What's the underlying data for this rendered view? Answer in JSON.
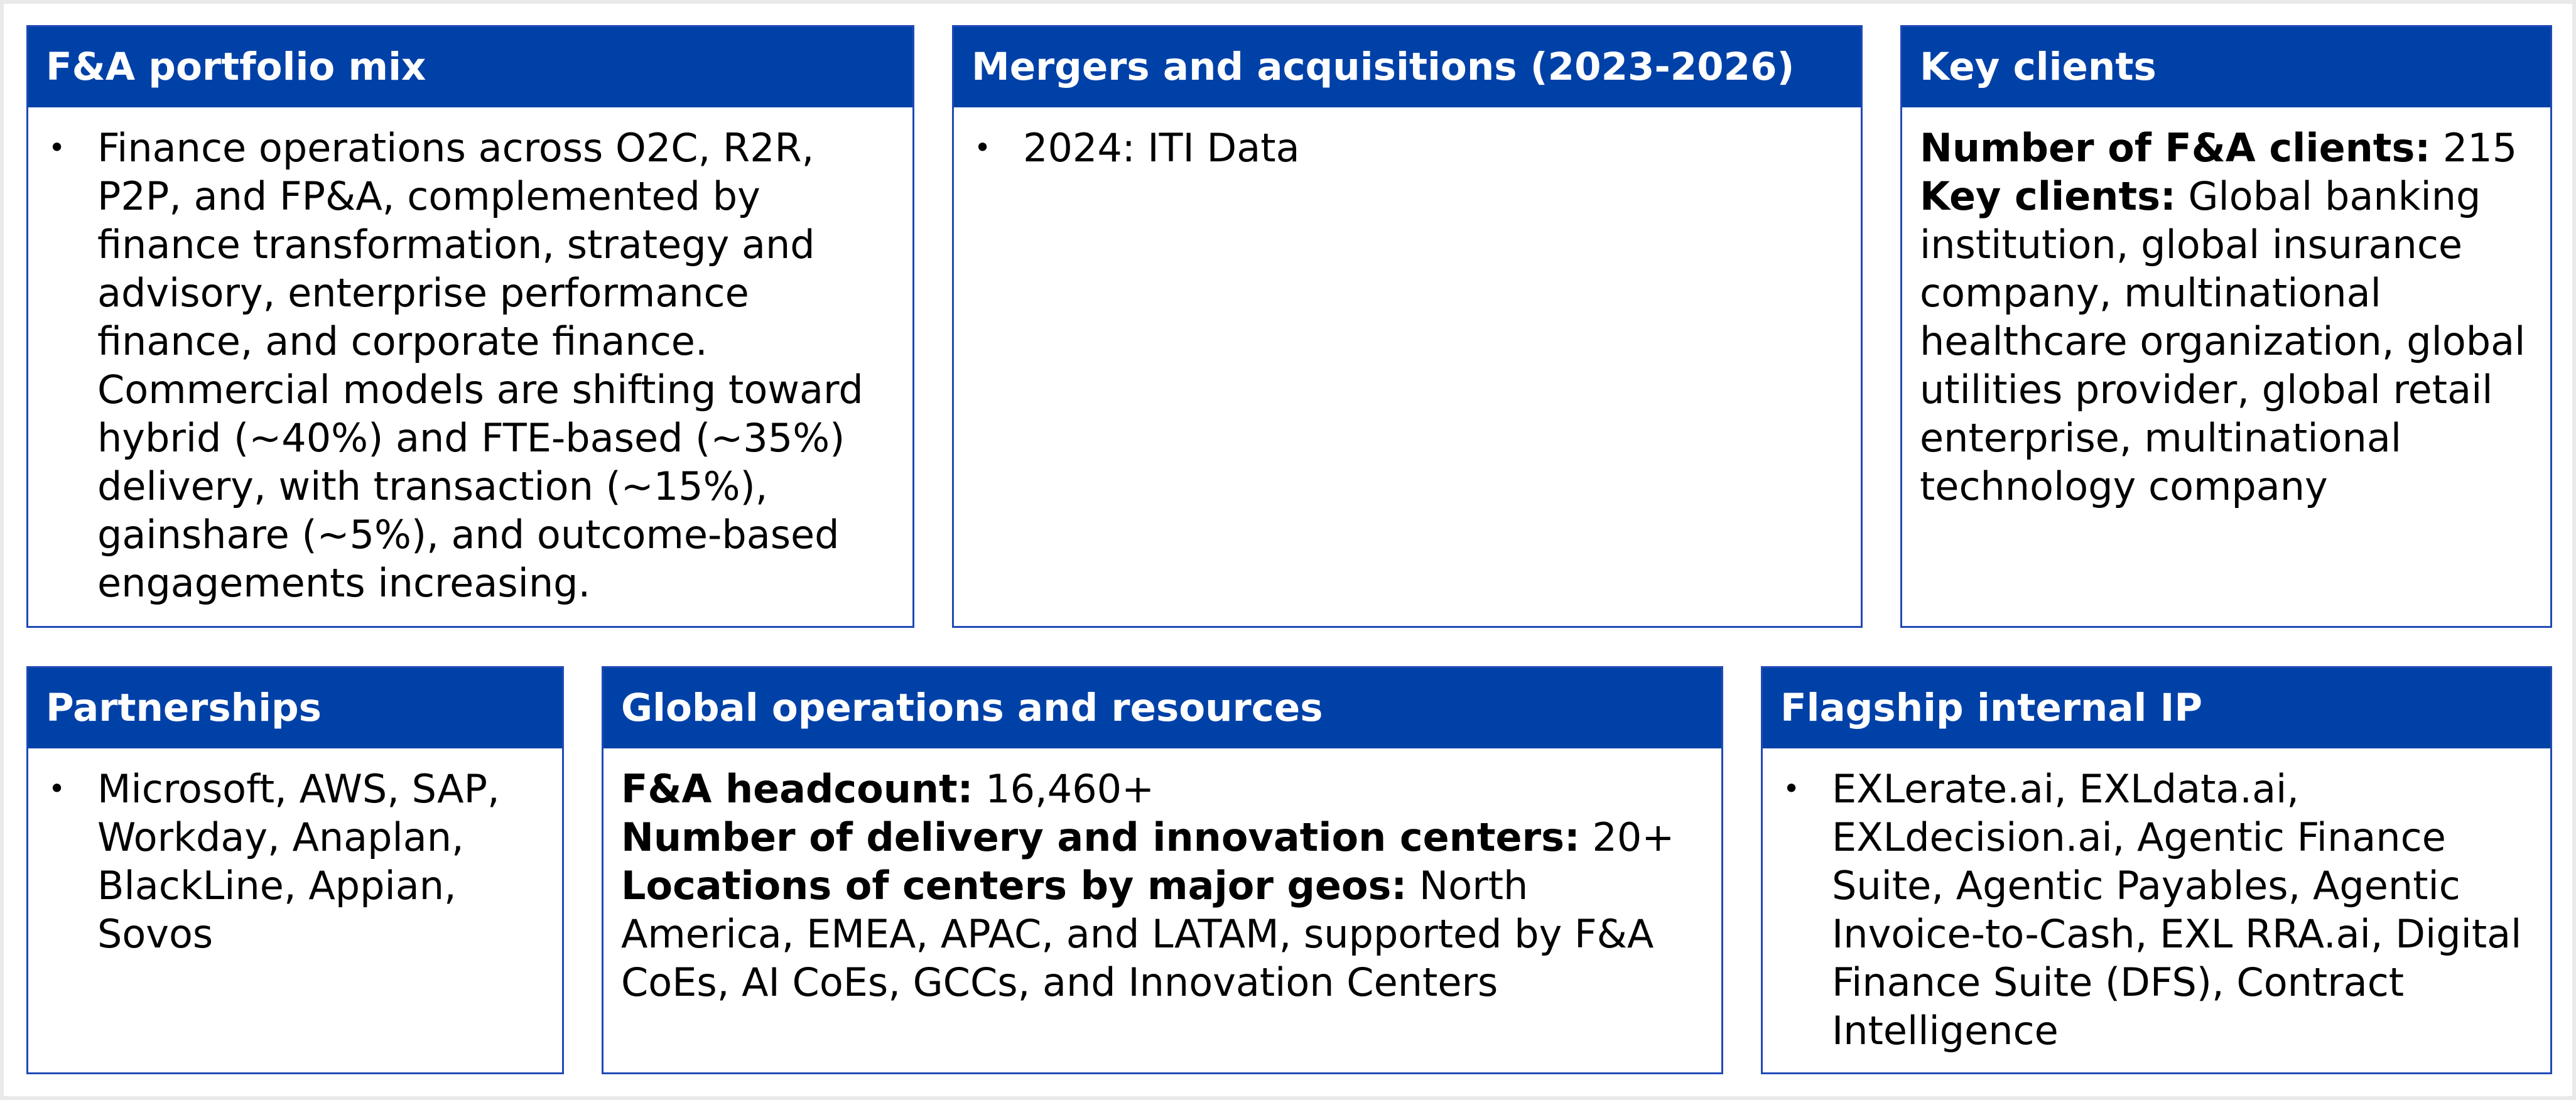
{
  "portfolio": {
    "title": "F&A portfolio mix",
    "bullets": [
      "Finance operations across O2C, R2R, P2P, and FP&A, complemented by finance transformation, strategy and advisory, enterprise performance finance, and corporate finance. Commercial models are shifting toward hybrid (~40%) and FTE-based (~35%) delivery, with transaction (~15%), gainshare (~5%), and outcome-based engagements increasing."
    ]
  },
  "mergers": {
    "title": "Mergers and acquisitions (2023-2026)",
    "bullets": [
      "2024: ITI Data"
    ]
  },
  "clients": {
    "title": "Key clients",
    "count_label": "Number of F&A clients:",
    "count_value": " 215",
    "key_label": "Key clients:",
    "key_value": " Global banking institution, global insurance company, multinational healthcare organization, global utilities provider, global retail enterprise, multinational technology company"
  },
  "partnerships": {
    "title": "Partnerships",
    "bullets": [
      "Microsoft, AWS, SAP, Workday, Anaplan, BlackLine, Appian, Sovos"
    ]
  },
  "operations": {
    "title": "Global operations and resources",
    "headcount_label": "F&A headcount:",
    "headcount_value": " 16,460+",
    "centers_label": "Number of delivery and innovation centers:",
    "centers_value": " 20+",
    "locations_label": "Locations of centers by major geos:",
    "locations_value": " North America, EMEA, APAC, and LATAM, supported by F&A CoEs, AI CoEs, GCCs, and Innovation Centers"
  },
  "ip": {
    "title": "Flagship internal IP",
    "bullets": [
      "EXLerate.ai, EXLdata.ai, EXLdecision.ai, Agentic Finance Suite, Agentic Payables, Agentic Invoice-to-Cash, EXL RRA.ai, Digital Finance Suite (DFS), Contract Intelligence"
    ]
  }
}
